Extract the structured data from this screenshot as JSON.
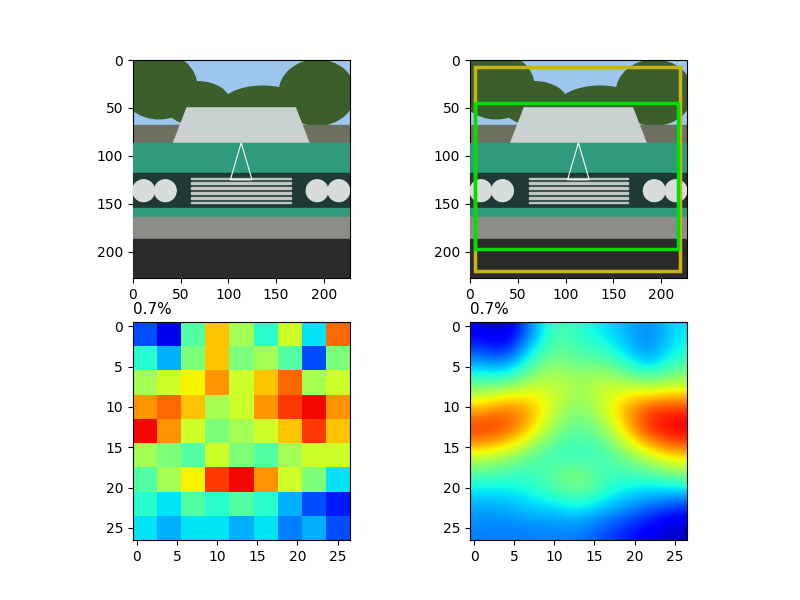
{
  "chart_data": [
    {
      "type": "image",
      "xlim": [
        0,
        227
      ],
      "ylim": [
        227,
        0
      ],
      "xticks": [
        0,
        50,
        100,
        150,
        200
      ],
      "yticks": [
        0,
        50,
        100,
        150,
        200
      ]
    },
    {
      "type": "image",
      "xlim": [
        0,
        227
      ],
      "ylim": [
        227,
        0
      ],
      "xticks": [
        0,
        50,
        100,
        150,
        200
      ],
      "yticks": [
        0,
        50,
        100,
        150,
        200
      ],
      "boxes": [
        {
          "color": "#c8b414",
          "x": [
            5,
            220
          ],
          "y": [
            7,
            220
          ]
        },
        {
          "color": "#00e000",
          "x": [
            5,
            218
          ],
          "y": [
            45,
            197
          ]
        }
      ]
    },
    {
      "type": "heatmap",
      "title": "0.7%",
      "xlim": [
        -0.5,
        26.5
      ],
      "ylim": [
        26.5,
        -0.5
      ],
      "xticks": [
        0,
        5,
        10,
        15,
        20,
        25
      ],
      "yticks": [
        0,
        5,
        10,
        15,
        20,
        25
      ],
      "value_range": [
        0,
        1
      ],
      "cells": [
        [
          0.2,
          0.1,
          0.45,
          0.7,
          0.55,
          0.4,
          0.6,
          0.35,
          0.8
        ],
        [
          0.4,
          0.3,
          0.5,
          0.7,
          0.5,
          0.55,
          0.45,
          0.2,
          0.5
        ],
        [
          0.55,
          0.6,
          0.65,
          0.75,
          0.6,
          0.7,
          0.8,
          0.55,
          0.6
        ],
        [
          0.75,
          0.8,
          0.7,
          0.55,
          0.6,
          0.75,
          0.85,
          0.9,
          0.75
        ],
        [
          0.9,
          0.75,
          0.6,
          0.5,
          0.55,
          0.6,
          0.7,
          0.85,
          0.7
        ],
        [
          0.55,
          0.5,
          0.45,
          0.6,
          0.5,
          0.45,
          0.55,
          0.6,
          0.6
        ],
        [
          0.45,
          0.55,
          0.65,
          0.85,
          0.9,
          0.75,
          0.6,
          0.5,
          0.35
        ],
        [
          0.4,
          0.35,
          0.45,
          0.4,
          0.45,
          0.4,
          0.3,
          0.2,
          0.15
        ],
        [
          0.35,
          0.3,
          0.35,
          0.35,
          0.3,
          0.35,
          0.25,
          0.3,
          0.2
        ]
      ]
    },
    {
      "type": "heatmap",
      "title": "0.7%",
      "xlim": [
        -0.5,
        26.5
      ],
      "ylim": [
        26.5,
        -0.5
      ],
      "xticks": [
        0,
        5,
        10,
        15,
        20,
        25
      ],
      "yticks": [
        0,
        5,
        10,
        15,
        20,
        25
      ],
      "value_range": [
        0,
        1
      ],
      "cells": [
        [
          0.1,
          0.05,
          0.25,
          0.45,
          0.4,
          0.35,
          0.3,
          0.25,
          0.35
        ],
        [
          0.25,
          0.2,
          0.4,
          0.5,
          0.45,
          0.45,
          0.35,
          0.25,
          0.4
        ],
        [
          0.45,
          0.45,
          0.55,
          0.6,
          0.55,
          0.6,
          0.55,
          0.5,
          0.55
        ],
        [
          0.7,
          0.8,
          0.75,
          0.6,
          0.5,
          0.6,
          0.75,
          0.85,
          0.85
        ],
        [
          0.9,
          0.85,
          0.7,
          0.5,
          0.45,
          0.5,
          0.7,
          0.9,
          0.95
        ],
        [
          0.6,
          0.55,
          0.45,
          0.4,
          0.4,
          0.4,
          0.5,
          0.6,
          0.7
        ],
        [
          0.4,
          0.4,
          0.4,
          0.5,
          0.55,
          0.45,
          0.4,
          0.4,
          0.45
        ],
        [
          0.3,
          0.3,
          0.35,
          0.35,
          0.4,
          0.35,
          0.3,
          0.25,
          0.2
        ],
        [
          0.25,
          0.25,
          0.25,
          0.25,
          0.25,
          0.2,
          0.15,
          0.1,
          0.05
        ]
      ]
    }
  ]
}
